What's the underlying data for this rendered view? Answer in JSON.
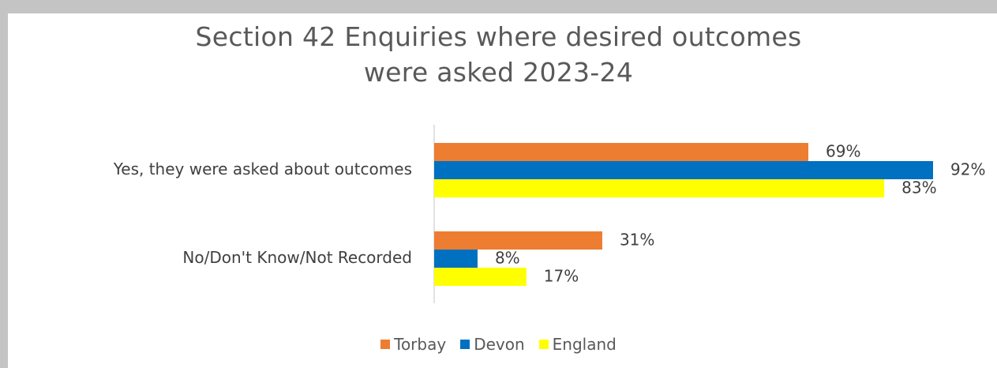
{
  "chart_data": {
    "type": "bar",
    "orientation": "horizontal",
    "title": [
      "Section 42 Enquiries where desired outcomes",
      "were asked 2023-24"
    ],
    "categories": [
      "Yes, they were asked about outcomes",
      "No/Don't Know/Not Recorded"
    ],
    "series": [
      {
        "name": "Torbay",
        "color": "#ed7d31",
        "values": [
          69,
          31
        ],
        "labels": [
          "69%",
          "31%"
        ]
      },
      {
        "name": "Devon",
        "color": "#0070c0",
        "values": [
          92,
          8
        ],
        "labels": [
          "92%",
          "8%"
        ]
      },
      {
        "name": "England",
        "color": "#ffff00",
        "values": [
          83,
          17
        ],
        "labels": [
          "83%",
          "17%"
        ]
      }
    ],
    "unit": "%",
    "xlim": [
      0,
      100
    ],
    "grid": false,
    "legend_position": "bottom"
  }
}
